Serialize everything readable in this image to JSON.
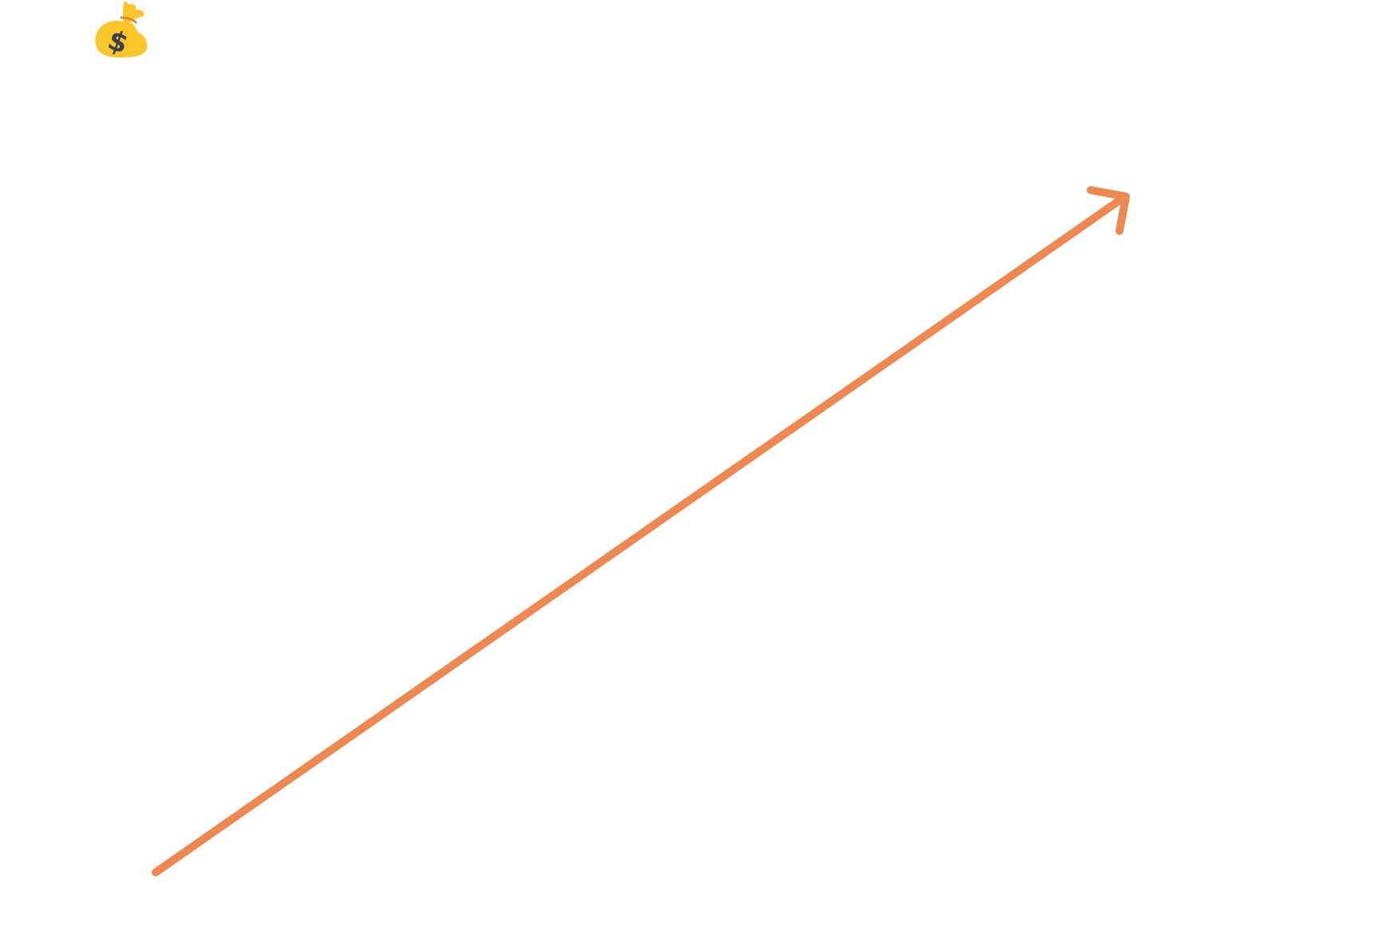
{
  "canvas": {
    "background": "#ffffff"
  },
  "icons": {
    "money_bag": {
      "name": "money-bag-icon",
      "symbol": "$",
      "bag_color": "#FBC52B",
      "bag_shadow_color": "#E2AB19",
      "tie_color": "#C9902E",
      "symbol_color": "#3E3E45"
    }
  },
  "arrow": {
    "name": "trend-up-arrow",
    "color": "#EE8852",
    "direction": "up-right"
  }
}
